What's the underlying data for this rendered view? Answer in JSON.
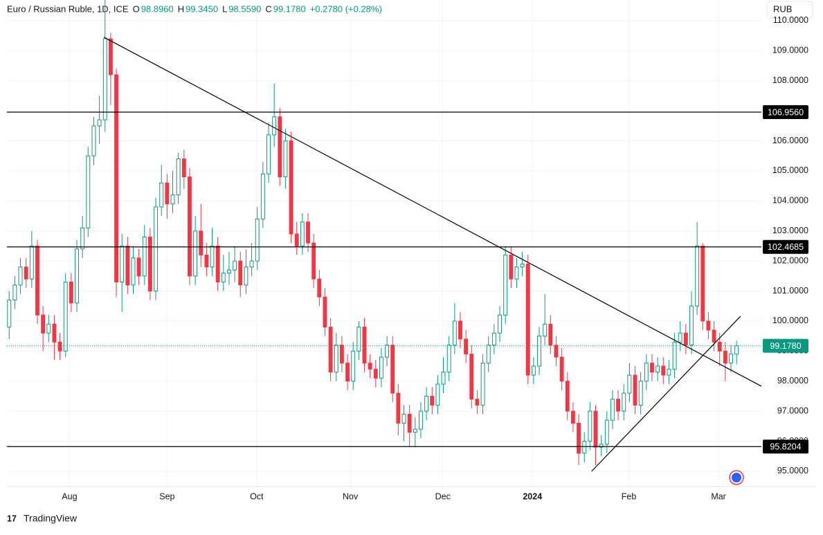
{
  "header": {
    "symbol": "Euro / Russian Ruble, 1D, ICE",
    "ohlc": [
      {
        "label": "O",
        "value": "98.8960"
      },
      {
        "label": "H",
        "value": "99.3450"
      },
      {
        "label": "L",
        "value": "98.5590"
      },
      {
        "label": "C",
        "value": "99.1780"
      }
    ],
    "change": "+0.2780 (+0.28%)",
    "currency_button": "RUB",
    "brand": "TradingView"
  },
  "chart_data": {
    "type": "candlestick",
    "up_color": "#089981",
    "down_color": "#f23645",
    "grid": true,
    "xlim": [
      -0.4,
      133.4
    ],
    "ylim": [
      94.49,
      110.69
    ],
    "xticks": [
      {
        "value": 10.7,
        "label": "Aug"
      },
      {
        "value": 28,
        "label": "Sep"
      },
      {
        "value": 43.9,
        "label": "Oct"
      },
      {
        "value": 60.5,
        "label": "Nov"
      },
      {
        "value": 76.9,
        "label": "Dec"
      },
      {
        "value": 92.8,
        "label": "2024"
      },
      {
        "value": 109.9,
        "label": "Feb"
      },
      {
        "value": 125.8,
        "label": "Mar"
      }
    ],
    "yticks": [
      {
        "value": 95,
        "label": "95.0000"
      },
      {
        "value": 96,
        "label": "96.0000"
      },
      {
        "value": 97,
        "label": "97.0000"
      },
      {
        "value": 98,
        "label": "98.0000"
      },
      {
        "value": 99,
        "label": "99.0000"
      },
      {
        "value": 100,
        "label": "100.0000"
      },
      {
        "value": 101,
        "label": "101.0000"
      },
      {
        "value": 102,
        "label": "102.0000"
      },
      {
        "value": 103,
        "label": "103.0000"
      },
      {
        "value": 104,
        "label": "104.0000"
      },
      {
        "value": 105,
        "label": "105.0000"
      },
      {
        "value": 106,
        "label": "106.0000"
      },
      {
        "value": 107,
        "label": "107.0000"
      },
      {
        "value": 108,
        "label": "108.0000"
      },
      {
        "value": 109,
        "label": "109.0000"
      },
      {
        "value": 110,
        "label": "110.0000"
      }
    ],
    "open": [
      99.8,
      100.7,
      101.2,
      101.8,
      101.4,
      102.5,
      100.2,
      99.6,
      99.9,
      99.3,
      99.0,
      101.3,
      100.6,
      102.4,
      103.1,
      105.5,
      106.5,
      106.7,
      109.4,
      108.2,
      101.3,
      102.5,
      101.2,
      102.1,
      101.5,
      102.8,
      101.0,
      103.8,
      104.6,
      103.9,
      104.2,
      105.4,
      104.8,
      101.5,
      103.0,
      102.2,
      101.8,
      102.5,
      101.3,
      101.6,
      101.7,
      102.0,
      101.2,
      101.8,
      102.0,
      103.4,
      104.9,
      106.2,
      106.8,
      104.8,
      106.0,
      102.9,
      102.5,
      103.3,
      102.6,
      101.4,
      100.8,
      99.8,
      98.3,
      99.2,
      98.6,
      98.0,
      99.0,
      99.8,
      98.6,
      98.4,
      98.1,
      98.8,
      99.2,
      97.6,
      96.6,
      96.9,
      96.3,
      96.4,
      97.0,
      97.5,
      97.2,
      97.9,
      98.3,
      99.2,
      100.0,
      99.4,
      98.9,
      97.4,
      97.2,
      98.6,
      99.2,
      99.6,
      100.2,
      102.2,
      101.4,
      101.8,
      101.9,
      98.2,
      98.5,
      99.5,
      99.9,
      99.2,
      98.8,
      98.0,
      97.0,
      96.6,
      95.6,
      96.0,
      97.0,
      95.8,
      95.9,
      96.7,
      97.4,
      97.0,
      97.6,
      98.2,
      97.2,
      98.0,
      98.6,
      98.3,
      98.5,
      98.2,
      98.4,
      99.3,
      99.6,
      99.2,
      100.5,
      102.5,
      100.0,
      99.7,
      99.3,
      99.0,
      98.6,
      98.896
    ],
    "high": [
      101.0,
      101.5,
      102.1,
      102.1,
      103.0,
      102.7,
      100.5,
      100.2,
      100.2,
      99.6,
      101.6,
      101.6,
      102.7,
      103.5,
      105.8,
      106.8,
      107.5,
      110.7,
      109.6,
      108.4,
      102.9,
      102.8,
      102.5,
      102.4,
      103.2,
      103.1,
      104.1,
      105.2,
      104.9,
      105.0,
      105.6,
      105.7,
      105.1,
      103.5,
      103.9,
      102.6,
      103.1,
      102.8,
      102.2,
      102.3,
      102.5,
      102.3,
      102.4,
      102.6,
      103.8,
      105.3,
      106.6,
      107.9,
      107.1,
      106.4,
      106.3,
      103.3,
      103.6,
      103.6,
      102.9,
      101.7,
      101.1,
      100.1,
      99.6,
      99.5,
      98.9,
      99.3,
      100.0,
      100.1,
      98.9,
      98.7,
      99.1,
      99.5,
      99.5,
      97.9,
      97.2,
      97.2,
      96.8,
      97.3,
      97.8,
      97.8,
      98.2,
      98.8,
      99.5,
      100.6,
      100.3,
      99.7,
      99.2,
      97.7,
      98.9,
      99.5,
      99.9,
      100.5,
      102.5,
      102.5,
      102.1,
      102.3,
      102.2,
      98.8,
      99.8,
      100.9,
      100.2,
      99.5,
      99.1,
      98.3,
      97.3,
      96.9,
      96.3,
      97.3,
      97.2,
      96.2,
      97.0,
      97.7,
      97.7,
      97.9,
      98.6,
      98.5,
      98.3,
      98.9,
      98.9,
      98.8,
      98.8,
      98.7,
      99.6,
      100.0,
      99.9,
      101.0,
      103.3,
      102.6,
      100.3,
      100.0,
      99.6,
      99.3,
      99.2,
      99.345
    ],
    "low": [
      99.4,
      100.4,
      100.9,
      101.1,
      101.1,
      99.9,
      99.0,
      99.3,
      98.7,
      98.7,
      98.8,
      100.3,
      100.3,
      102.1,
      102.8,
      105.2,
      105.9,
      106.3,
      107.2,
      100.8,
      100.3,
      100.9,
      100.9,
      101.2,
      101.2,
      100.7,
      100.7,
      103.5,
      103.4,
      103.6,
      103.9,
      104.4,
      101.2,
      101.2,
      101.8,
      101.5,
      101.5,
      101.0,
      101.0,
      101.2,
      101.3,
      100.8,
      100.9,
      101.5,
      101.7,
      103.1,
      104.6,
      105.8,
      104.5,
      104.4,
      102.6,
      102.2,
      102.2,
      102.3,
      101.1,
      100.5,
      99.5,
      98.0,
      98.0,
      98.3,
      97.7,
      97.7,
      98.7,
      98.3,
      98.1,
      97.8,
      97.8,
      98.5,
      97.3,
      96.2,
      96.0,
      95.8,
      95.8,
      96.1,
      96.7,
      96.9,
      96.9,
      97.6,
      98.0,
      98.9,
      99.1,
      98.6,
      97.1,
      96.9,
      96.9,
      98.3,
      98.9,
      99.3,
      99.9,
      101.1,
      101.1,
      101.5,
      97.9,
      97.9,
      98.2,
      99.2,
      98.9,
      98.5,
      97.7,
      96.7,
      96.3,
      95.2,
      95.3,
      95.7,
      95.2,
      95.5,
      95.6,
      96.4,
      96.7,
      96.7,
      97.3,
      96.9,
      96.9,
      97.7,
      98.0,
      98.0,
      97.9,
      97.9,
      98.1,
      99.0,
      98.9,
      98.9,
      100.2,
      99.7,
      99.4,
      99.0,
      98.5,
      98.0,
      98.3,
      98.559
    ],
    "close": [
      100.7,
      101.2,
      101.8,
      101.4,
      102.5,
      100.2,
      99.6,
      99.9,
      99.3,
      99.0,
      101.3,
      100.6,
      102.4,
      103.1,
      105.5,
      106.5,
      106.7,
      109.4,
      108.2,
      101.3,
      102.5,
      101.2,
      102.1,
      101.5,
      102.8,
      101.0,
      103.8,
      104.6,
      103.9,
      104.2,
      105.4,
      104.8,
      101.5,
      103.0,
      102.2,
      101.8,
      102.5,
      101.3,
      101.6,
      101.7,
      102.0,
      101.2,
      101.8,
      102.0,
      103.4,
      104.9,
      106.2,
      106.8,
      104.8,
      106.0,
      102.9,
      102.5,
      103.3,
      102.6,
      101.4,
      100.8,
      99.8,
      98.3,
      99.2,
      98.6,
      98.0,
      99.0,
      99.8,
      98.6,
      98.4,
      98.1,
      98.8,
      99.2,
      97.6,
      96.6,
      96.9,
      96.3,
      96.4,
      97.0,
      97.5,
      97.2,
      97.9,
      98.3,
      99.2,
      100.0,
      99.4,
      98.9,
      97.4,
      97.2,
      98.6,
      99.2,
      99.6,
      100.2,
      102.2,
      101.4,
      101.8,
      101.9,
      98.2,
      98.5,
      99.5,
      99.9,
      99.2,
      98.8,
      98.0,
      97.0,
      96.6,
      95.6,
      96.0,
      97.0,
      95.8,
      95.9,
      96.7,
      97.4,
      97.0,
      97.6,
      98.2,
      97.2,
      98.0,
      98.6,
      98.3,
      98.5,
      98.2,
      98.4,
      99.3,
      99.6,
      99.2,
      100.5,
      102.5,
      100.0,
      99.7,
      99.3,
      99.0,
      98.6,
      98.9,
      99.178
    ],
    "horizontal_lines": [
      {
        "value": 106.956,
        "label": "106.9560"
      },
      {
        "value": 102.4685,
        "label": "102.4685"
      },
      {
        "value": 95.8204,
        "label": "95.8204"
      }
    ],
    "last_price": {
      "value": 99.178,
      "label": "99.1780"
    },
    "trend_lines": [
      {
        "x": [
          16.8,
          133.4
        ],
        "y": [
          109.45,
          97.83
        ]
      },
      {
        "x": [
          103.3,
          129.7
        ],
        "y": [
          95.0,
          100.16
        ]
      }
    ]
  }
}
